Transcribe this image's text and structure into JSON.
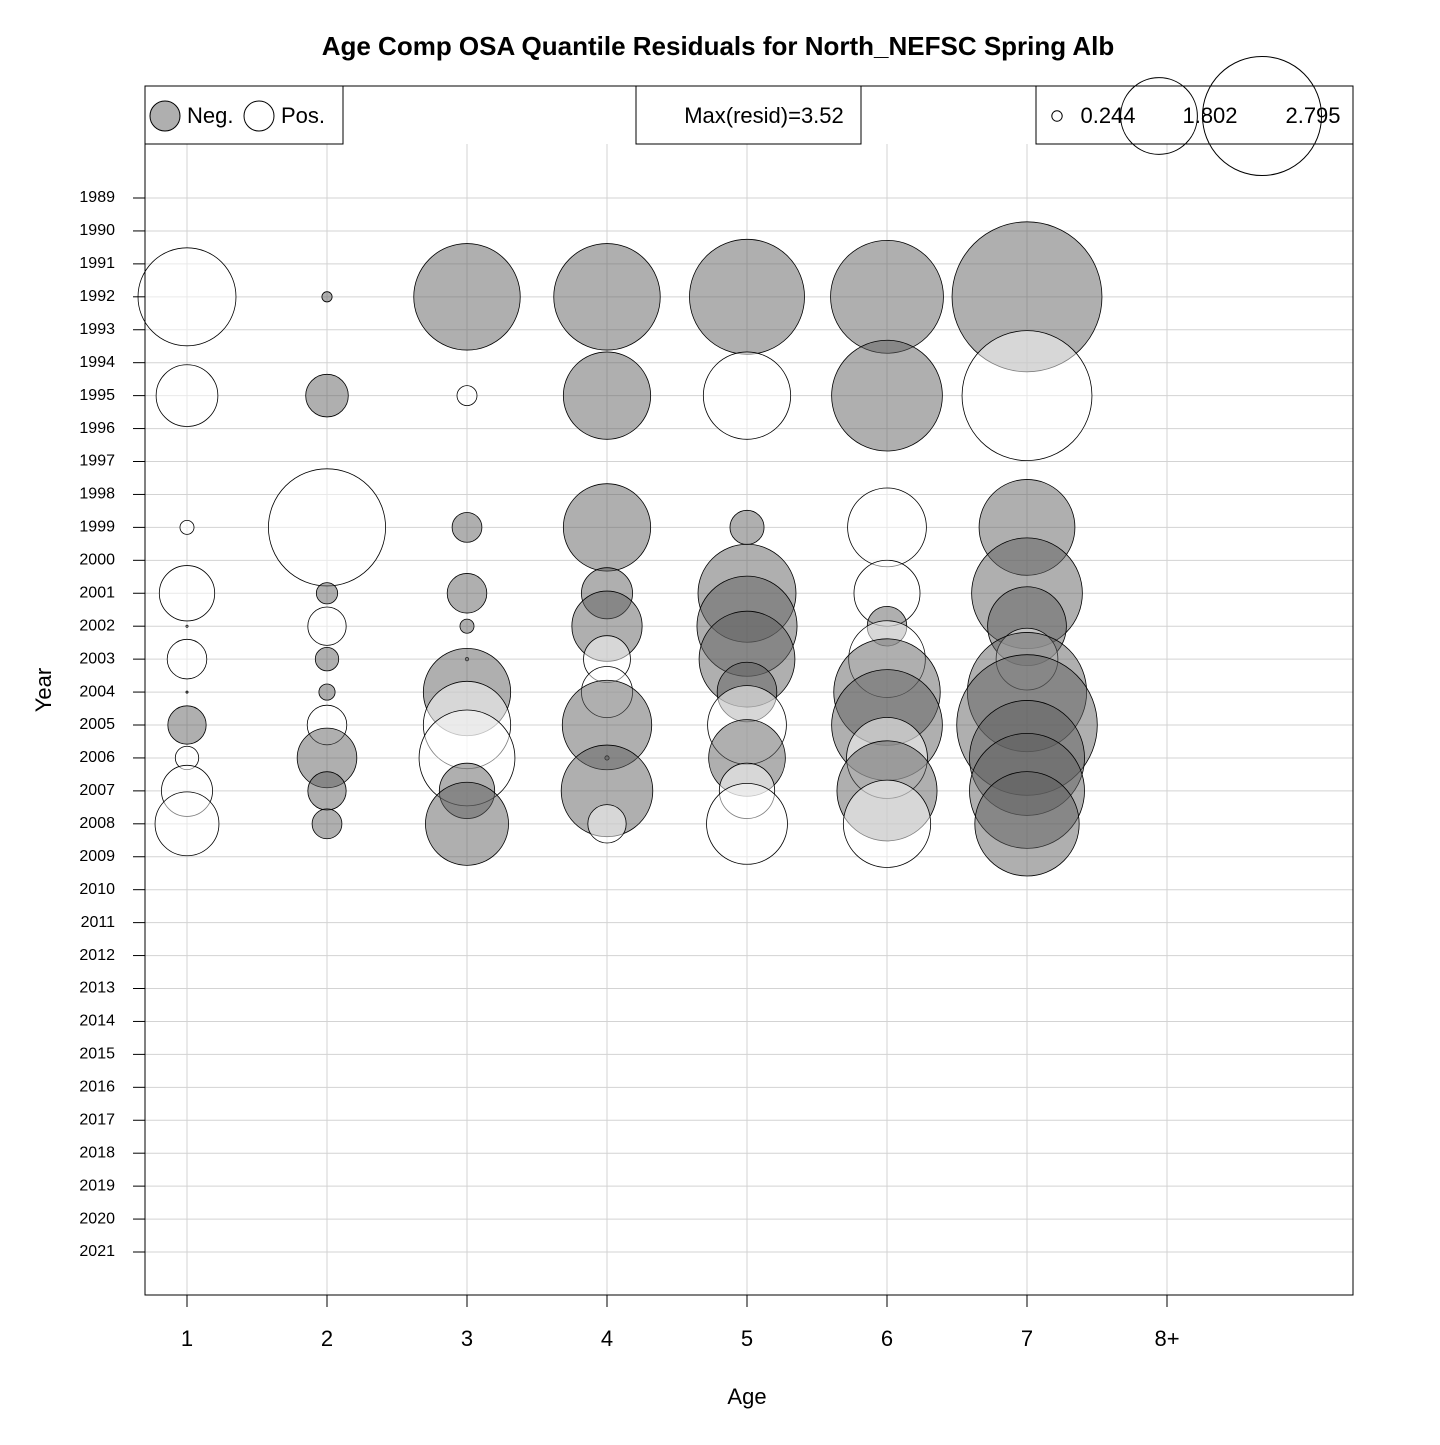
{
  "chart_data": {
    "type": "bubble",
    "title": "Age Comp OSA Quantile Residuals for North_NEFSC Spring Alb",
    "x_label": "Age",
    "y_label": "Year",
    "categories": [
      "1",
      "2",
      "3",
      "4",
      "5",
      "6",
      "7",
      "8+"
    ],
    "years": [
      "1989",
      "1990",
      "1991",
      "1992",
      "1993",
      "1994",
      "1995",
      "1996",
      "1997",
      "1998",
      "1999",
      "2000",
      "2001",
      "2002",
      "2003",
      "2004",
      "2005",
      "2006",
      "2007",
      "2008",
      "2009",
      "2010",
      "2011",
      "2012",
      "2013",
      "2014",
      "2015",
      "2016",
      "2017",
      "2018",
      "2019",
      "2020",
      "2021"
    ],
    "values": [
      [
        null,
        null,
        null,
        null,
        null,
        null,
        null,
        null
      ],
      [
        null,
        null,
        null,
        null,
        null,
        null,
        null,
        null
      ],
      [
        null,
        null,
        null,
        null,
        null,
        null,
        null,
        null
      ],
      [
        2.3,
        -0.24,
        -2.5,
        -2.5,
        -2.7,
        -2.65,
        -3.52,
        null
      ],
      [
        null,
        null,
        null,
        null,
        null,
        null,
        null,
        null
      ],
      [
        null,
        null,
        null,
        null,
        null,
        null,
        null,
        null
      ],
      [
        1.45,
        -1.0,
        0.47,
        -2.05,
        2.05,
        -2.6,
        3.05,
        null
      ],
      [
        null,
        null,
        null,
        null,
        null,
        null,
        null,
        null
      ],
      [
        null,
        null,
        null,
        null,
        null,
        null,
        null,
        null
      ],
      [
        null,
        null,
        null,
        null,
        null,
        null,
        null,
        null
      ],
      [
        0.33,
        2.75,
        -0.7,
        -2.05,
        -0.8,
        1.85,
        -2.25,
        null
      ],
      [
        null,
        null,
        null,
        null,
        null,
        null,
        null,
        null
      ],
      [
        1.3,
        -0.5,
        -0.93,
        -1.2,
        -2.3,
        1.55,
        -2.6,
        null
      ],
      [
        0.05,
        0.9,
        -0.33,
        -1.65,
        -2.35,
        -0.93,
        -1.85,
        null
      ],
      [
        0.93,
        -0.55,
        -0.08,
        1.1,
        -2.25,
        1.8,
        1.45,
        null
      ],
      [
        -0.05,
        -0.38,
        -2.05,
        1.2,
        -1.4,
        -2.5,
        -2.8,
        null
      ],
      [
        -0.9,
        0.93,
        2.05,
        -2.1,
        1.85,
        -2.6,
        -3.3,
        null
      ],
      [
        0.55,
        -1.4,
        2.25,
        -0.1,
        -1.8,
        1.9,
        -2.7,
        null
      ],
      [
        1.2,
        -0.9,
        -1.3,
        -2.15,
        1.3,
        -2.35,
        -2.7,
        null
      ],
      [
        1.5,
        -0.7,
        -1.95,
        0.9,
        1.9,
        2.05,
        -2.45,
        null
      ],
      [
        null,
        null,
        null,
        null,
        null,
        null,
        null,
        null
      ],
      [
        null,
        null,
        null,
        null,
        null,
        null,
        null,
        null
      ],
      [
        null,
        null,
        null,
        null,
        null,
        null,
        null,
        null
      ],
      [
        null,
        null,
        null,
        null,
        null,
        null,
        null,
        null
      ],
      [
        null,
        null,
        null,
        null,
        null,
        null,
        null,
        null
      ],
      [
        null,
        null,
        null,
        null,
        null,
        null,
        null,
        null
      ],
      [
        null,
        null,
        null,
        null,
        null,
        null,
        null,
        null
      ],
      [
        null,
        null,
        null,
        null,
        null,
        null,
        null,
        null
      ],
      [
        null,
        null,
        null,
        null,
        null,
        null,
        null,
        null
      ],
      [
        null,
        null,
        null,
        null,
        null,
        null,
        null,
        null
      ],
      [
        null,
        null,
        null,
        null,
        null,
        null,
        null,
        null
      ],
      [
        null,
        null,
        null,
        null,
        null,
        null,
        null,
        null
      ],
      [
        null,
        null,
        null,
        null,
        null,
        null,
        null,
        null
      ]
    ],
    "legend_neg": "Neg.",
    "legend_pos": "Pos.",
    "max_label": "Max(resid)=3.52",
    "size_legend": [
      0.244,
      1.802,
      2.795
    ],
    "neg_color": "#606060",
    "pos_color": "#ffffff",
    "grid": true
  }
}
